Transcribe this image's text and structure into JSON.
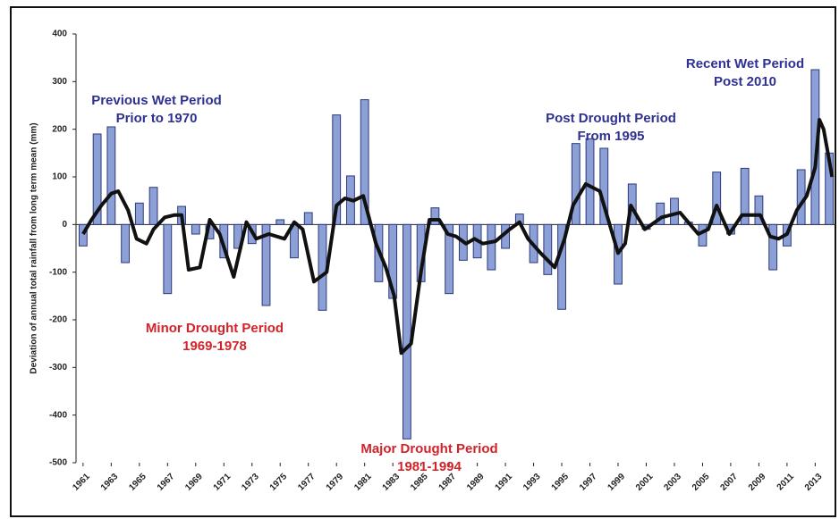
{
  "chart_data": {
    "type": "bar-line",
    "y_label": "Deviation of annual total rainfall from long term mean (mm)",
    "ylim": [
      -500,
      400
    ],
    "yticks": [
      -500,
      -400,
      -300,
      -200,
      -100,
      0,
      100,
      200,
      300,
      400
    ],
    "xlim": [
      1960.5,
      2014.5
    ],
    "xticks": [
      1961,
      1963,
      1965,
      1967,
      1969,
      1971,
      1973,
      1975,
      1977,
      1979,
      1981,
      1983,
      1985,
      1987,
      1989,
      1991,
      1993,
      1995,
      1997,
      1999,
      2001,
      2003,
      2005,
      2007,
      2009,
      2011,
      2013
    ],
    "series": [
      {
        "type": "bar",
        "color": "#8c9fd6",
        "edge": "#2b3a7a",
        "x": [
          1961,
          1962,
          1963,
          1964,
          1965,
          1966,
          1967,
          1968,
          1969,
          1970,
          1971,
          1972,
          1973,
          1974,
          1975,
          1976,
          1977,
          1978,
          1979,
          1980,
          1981,
          1982,
          1983,
          1984,
          1985,
          1986,
          1987,
          1988,
          1989,
          1990,
          1991,
          1992,
          1993,
          1994,
          1995,
          1996,
          1997,
          1998,
          1999,
          2000,
          2001,
          2002,
          2003,
          2004,
          2005,
          2006,
          2007,
          2008,
          2009,
          2010,
          2011,
          2012,
          2013,
          2014
        ],
        "values": [
          -45,
          190,
          205,
          -80,
          45,
          78,
          -145,
          38,
          -20,
          -30,
          -70,
          -50,
          -40,
          -170,
          10,
          -70,
          25,
          -180,
          230,
          102,
          262,
          -120,
          -155,
          -450,
          -120,
          35,
          -145,
          -75,
          -70,
          -95,
          -50,
          22,
          -80,
          -105,
          -178,
          170,
          180,
          160,
          -125,
          85,
          -10,
          45,
          55,
          5,
          -45,
          110,
          -20,
          118,
          60,
          -95,
          -45,
          115,
          325,
          150
        ]
      },
      {
        "type": "line",
        "color": "#111111",
        "x": [
          1961,
          1961.6,
          1962.3,
          1963,
          1963.5,
          1964.2,
          1964.8,
          1965.5,
          1966,
          1966.8,
          1967.5,
          1968,
          1968.5,
          1969.3,
          1970,
          1970.7,
          1971.7,
          1972.6,
          1973.3,
          1974.2,
          1975.3,
          1976,
          1976.6,
          1977.4,
          1978.3,
          1979,
          1979.6,
          1980.2,
          1980.9,
          1981.8,
          1982.5,
          1983.1,
          1983.6,
          1984.3,
          1985,
          1985.6,
          1986.3,
          1986.9,
          1987.5,
          1988.2,
          1988.8,
          1989.4,
          1990.3,
          1991.3,
          1992,
          1992.6,
          1993.5,
          1994.5,
          1995.2,
          1995.8,
          1996.7,
          1997.7,
          1998.4,
          1999,
          1999.5,
          1999.9,
          2000.9,
          2002.1,
          2003.4,
          2004.7,
          2005.4,
          2006,
          2006.9,
          2007.8,
          2008.4,
          2009.1,
          2009.8,
          2010.4,
          2011,
          2011.7,
          2012.4,
          2013,
          2013.3,
          2013.6,
          2013.9,
          2014.2
        ],
        "values": [
          -20,
          10,
          40,
          65,
          70,
          30,
          -30,
          -40,
          -10,
          15,
          20,
          20,
          -95,
          -90,
          10,
          -20,
          -110,
          5,
          -30,
          -20,
          -30,
          5,
          -10,
          -120,
          -100,
          40,
          55,
          50,
          60,
          -40,
          -90,
          -150,
          -270,
          -250,
          -100,
          10,
          10,
          -20,
          -25,
          -40,
          -30,
          -40,
          -35,
          -10,
          5,
          -30,
          -60,
          -90,
          -30,
          40,
          85,
          70,
          0,
          -60,
          -40,
          40,
          -10,
          15,
          25,
          -20,
          -10,
          40,
          -20,
          20,
          20,
          20,
          -25,
          -30,
          -20,
          30,
          60,
          120,
          220,
          200,
          150,
          100
        ]
      }
    ],
    "annotations": [
      {
        "lines": [
          "Previous Wet Period",
          "Prior to 1970"
        ],
        "color": "#2e3192"
      },
      {
        "lines": [
          "Minor Drought Period",
          "1969-1978"
        ],
        "color": "#d2232a"
      },
      {
        "lines": [
          "Major Drought Period",
          "1981-1994"
        ],
        "color": "#d2232a"
      },
      {
        "lines": [
          "Post Drought Period",
          "From 1995"
        ],
        "color": "#2e3192"
      },
      {
        "lines": [
          "Recent Wet Period",
          "Post 2010"
        ],
        "color": "#2e3192"
      }
    ]
  }
}
